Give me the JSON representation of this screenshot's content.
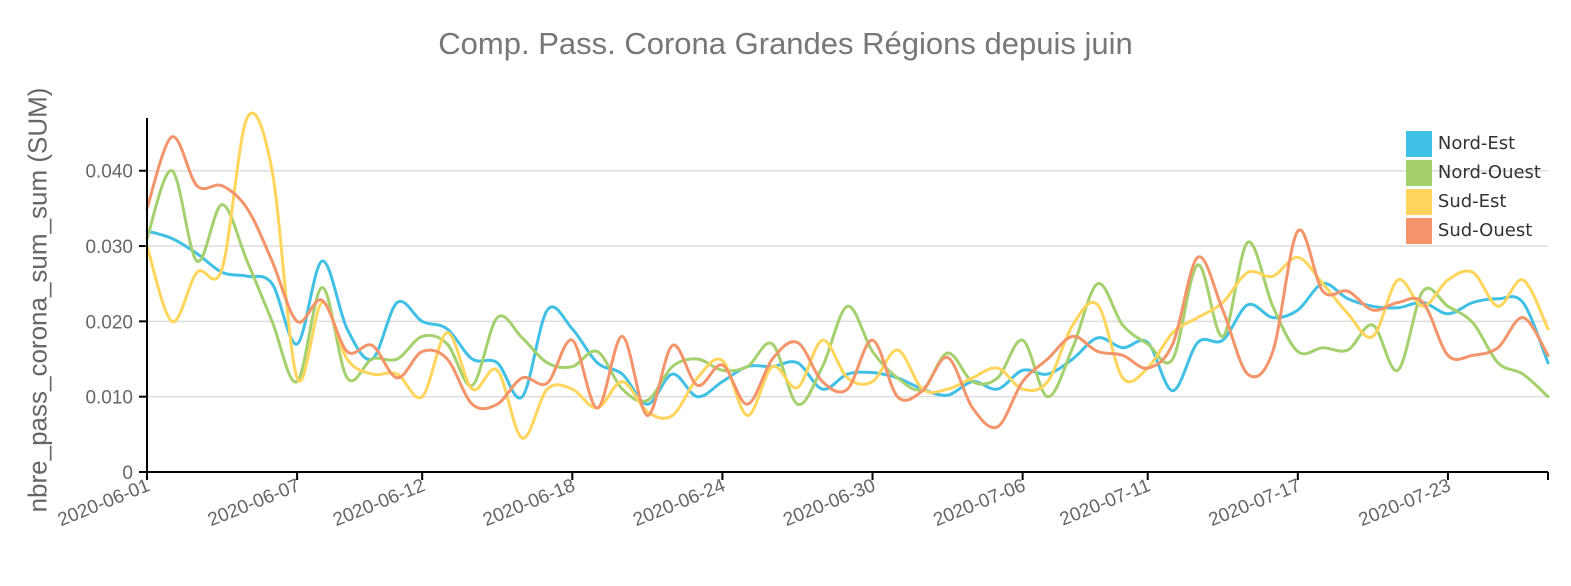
{
  "chart_data": {
    "type": "line",
    "title": "Comp. Pass. Corona Grandes Régions depuis juin",
    "xlabel": "",
    "ylabel": "nbre_pass_corona_sum_sum (SUM)",
    "ylim": [
      0,
      0.047
    ],
    "yticks": [
      "0",
      "0.010",
      "0.020",
      "0.030",
      "0.040"
    ],
    "ytick_values": [
      0,
      0.01,
      0.02,
      0.03,
      0.04
    ],
    "xticks": [
      "2020-06-01",
      "2020-06-07",
      "2020-06-12",
      "2020-06-18",
      "2020-06-24",
      "2020-06-30",
      "2020-07-06",
      "2020-07-11",
      "2020-07-17",
      "2020-07-23"
    ],
    "x": [
      "2020-06-01",
      "2020-06-02",
      "2020-06-03",
      "2020-06-04",
      "2020-06-05",
      "2020-06-06",
      "2020-06-07",
      "2020-06-08",
      "2020-06-09",
      "2020-06-10",
      "2020-06-11",
      "2020-06-12",
      "2020-06-13",
      "2020-06-14",
      "2020-06-15",
      "2020-06-16",
      "2020-06-17",
      "2020-06-18",
      "2020-06-19",
      "2020-06-20",
      "2020-06-21",
      "2020-06-22",
      "2020-06-23",
      "2020-06-24",
      "2020-06-25",
      "2020-06-26",
      "2020-06-27",
      "2020-06-28",
      "2020-06-29",
      "2020-06-30",
      "2020-07-01",
      "2020-07-02",
      "2020-07-03",
      "2020-07-04",
      "2020-07-05",
      "2020-07-06",
      "2020-07-07",
      "2020-07-08",
      "2020-07-09",
      "2020-07-10",
      "2020-07-11",
      "2020-07-12",
      "2020-07-13",
      "2020-07-14",
      "2020-07-15",
      "2020-07-16",
      "2020-07-17",
      "2020-07-18",
      "2020-07-19",
      "2020-07-20",
      "2020-07-21",
      "2020-07-22",
      "2020-07-23",
      "2020-07-24",
      "2020-07-25",
      "2020-07-26",
      "2020-07-27"
    ],
    "grid": true,
    "legend_position": "top-right",
    "series": [
      {
        "name": "Nord-Est",
        "color": "#41C0E6",
        "values": [
          0.032,
          0.031,
          0.029,
          0.0265,
          0.026,
          0.025,
          0.017,
          0.028,
          0.019,
          0.015,
          0.0225,
          0.02,
          0.019,
          0.015,
          0.0145,
          0.01,
          0.0215,
          0.019,
          0.0145,
          0.013,
          0.009,
          0.013,
          0.01,
          0.012,
          0.014,
          0.014,
          0.0145,
          0.011,
          0.013,
          0.0132,
          0.0125,
          0.011,
          0.0102,
          0.012,
          0.011,
          0.0135,
          0.013,
          0.015,
          0.0178,
          0.0165,
          0.0172,
          0.0108,
          0.0172,
          0.0175,
          0.0222,
          0.0205,
          0.0215,
          0.025,
          0.023,
          0.022,
          0.0218,
          0.0225,
          0.021,
          0.0225,
          0.023,
          0.0225,
          0.0145
        ]
      },
      {
        "name": "Nord-Ouest",
        "color": "#A4D16E",
        "values": [
          0.031,
          0.04,
          0.028,
          0.0355,
          0.028,
          0.02,
          0.012,
          0.0245,
          0.0125,
          0.015,
          0.015,
          0.018,
          0.017,
          0.0115,
          0.0205,
          0.0178,
          0.0145,
          0.014,
          0.016,
          0.011,
          0.0095,
          0.014,
          0.015,
          0.0135,
          0.014,
          0.017,
          0.009,
          0.014,
          0.022,
          0.016,
          0.0125,
          0.011,
          0.0158,
          0.012,
          0.0125,
          0.0175,
          0.01,
          0.0165,
          0.025,
          0.0195,
          0.017,
          0.015,
          0.0275,
          0.018,
          0.0305,
          0.022,
          0.016,
          0.0165,
          0.0162,
          0.0195,
          0.0135,
          0.024,
          0.022,
          0.0198,
          0.0145,
          0.013,
          0.01
        ]
      },
      {
        "name": "Sud-Est",
        "color": "#FFD55C",
        "values": [
          0.03,
          0.02,
          0.0265,
          0.027,
          0.047,
          0.04,
          0.0125,
          0.0225,
          0.015,
          0.013,
          0.013,
          0.01,
          0.0185,
          0.011,
          0.0135,
          0.0045,
          0.011,
          0.011,
          0.0085,
          0.012,
          0.008,
          0.0075,
          0.0125,
          0.0148,
          0.0075,
          0.014,
          0.0112,
          0.0175,
          0.0125,
          0.012,
          0.0162,
          0.011,
          0.011,
          0.0125,
          0.0138,
          0.011,
          0.012,
          0.0195,
          0.0222,
          0.0125,
          0.0138,
          0.0185,
          0.0205,
          0.0225,
          0.0265,
          0.026,
          0.0285,
          0.025,
          0.021,
          0.018,
          0.0255,
          0.022,
          0.0255,
          0.0265,
          0.022,
          0.0255,
          0.019
        ]
      },
      {
        "name": "Sud-Ouest",
        "color": "#F4946A",
        "values": [
          0.035,
          0.0445,
          0.038,
          0.038,
          0.035,
          0.028,
          0.02,
          0.0228,
          0.016,
          0.0168,
          0.0125,
          0.016,
          0.015,
          0.009,
          0.009,
          0.0125,
          0.0118,
          0.0175,
          0.0085,
          0.018,
          0.0075,
          0.0168,
          0.0115,
          0.0142,
          0.009,
          0.015,
          0.0172,
          0.012,
          0.011,
          0.0175,
          0.01,
          0.0108,
          0.0152,
          0.0085,
          0.006,
          0.012,
          0.015,
          0.018,
          0.016,
          0.0155,
          0.0138,
          0.017,
          0.0285,
          0.0215,
          0.013,
          0.016,
          0.032,
          0.024,
          0.024,
          0.0215,
          0.0225,
          0.0225,
          0.0155,
          0.0155,
          0.0165,
          0.0205,
          0.0155
        ]
      }
    ]
  }
}
